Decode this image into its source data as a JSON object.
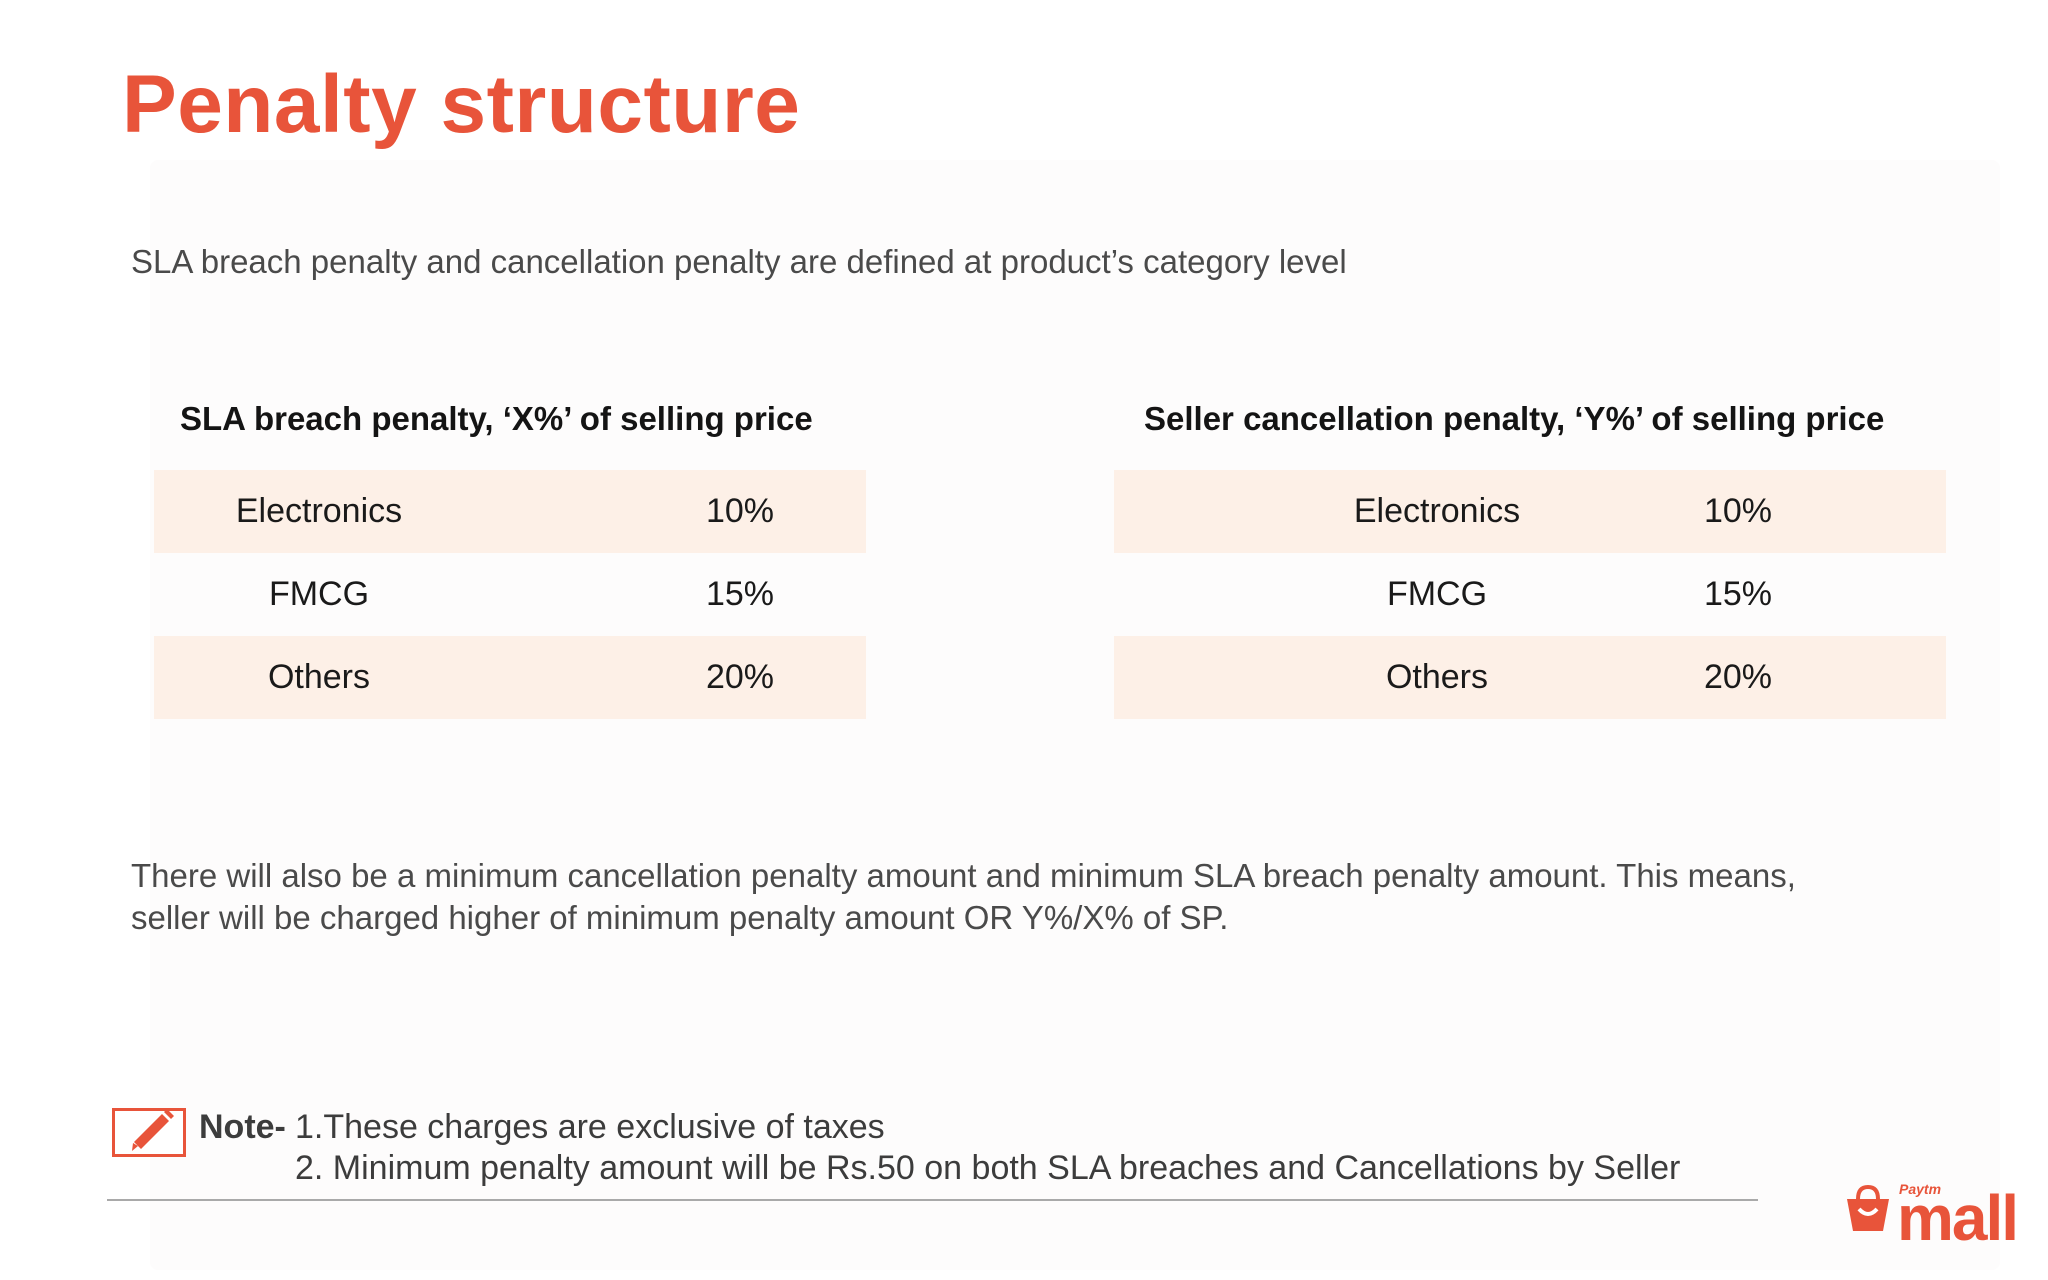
{
  "title": "Penalty structure",
  "subtitle": "SLA breach penalty and cancellation penalty are defined at product’s category level",
  "tables": [
    {
      "heading": "SLA breach penalty, ‘X%’ of selling price",
      "rows": [
        {
          "category": "Electronics",
          "value": "10%"
        },
        {
          "category": "FMCG",
          "value": "15%"
        },
        {
          "category": "Others",
          "value": "20%"
        }
      ]
    },
    {
      "heading": "Seller cancellation penalty, ‘Y%’ of selling price",
      "rows": [
        {
          "category": "Electronics",
          "value": "10%"
        },
        {
          "category": "FMCG",
          "value": "15%"
        },
        {
          "category": "Others",
          "value": "20%"
        }
      ]
    }
  ],
  "paragraph": {
    "line1": "There will also be a minimum cancellation penalty amount and minimum SLA breach penalty amount. This means,",
    "line2": "seller will be charged higher of minimum penalty amount OR Y%/X% of SP."
  },
  "note": {
    "label": "Note-",
    "line1": "1.These charges are exclusive of taxes",
    "line2": "2. Minimum penalty amount will be Rs.50 on both SLA breaches and Cancellations by Seller"
  },
  "logo": {
    "small": "Paytm",
    "main": "mall"
  },
  "colors": {
    "accent": "#e8543a",
    "row_shade": "#fdf0e7"
  }
}
